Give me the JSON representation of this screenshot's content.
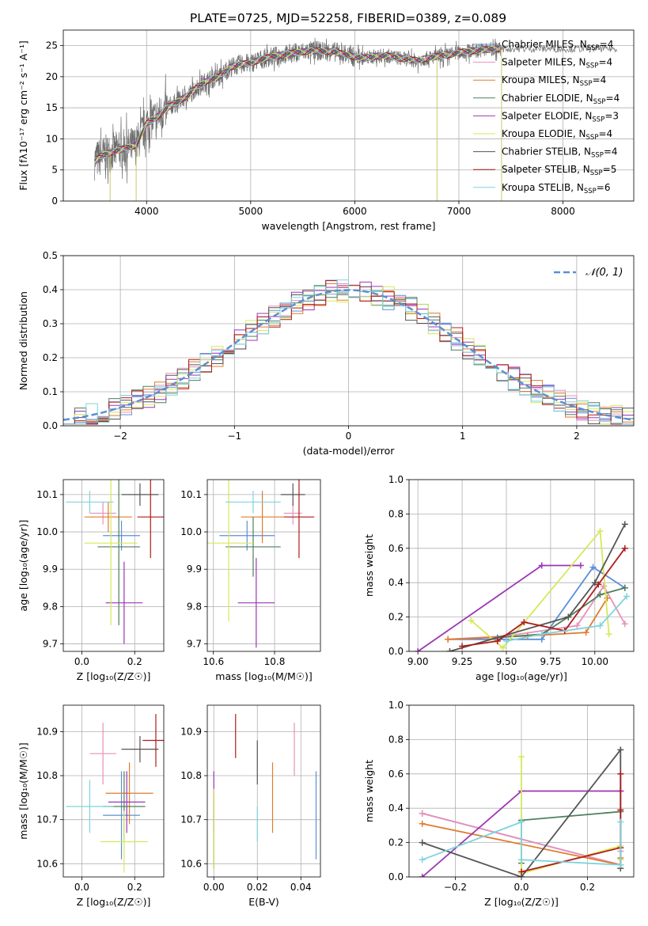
{
  "title": "PLATE=0725, MJD=52258, FIBERID=0389, z=0.089",
  "colors": {
    "Chabrier MILES": "#5b8fd6",
    "Salpeter MILES": "#e891b8",
    "Kroupa MILES": "#e07b2e",
    "Chabrier ELODIE": "#4e7f5c",
    "Salpeter ELODIE": "#9c36b5",
    "Kroupa ELODIE": "#d6e85a",
    "Chabrier STELIB": "#555555",
    "Salpeter STELIB": "#b01c1c",
    "Kroupa STELIB": "#7fd3dd"
  },
  "chart_data": [
    {
      "id": "spectrum",
      "type": "line",
      "xlabel": "wavelength [Angstrom, rest frame]",
      "ylabel": "Flux [fλ10⁻¹⁷ erg cm⁻² s⁻¹ A⁻¹]",
      "xlim": [
        3200,
        8680
      ],
      "ylim": [
        0,
        27.5
      ],
      "xticks": [
        4000,
        5000,
        6000,
        7000,
        8000
      ],
      "yticks": [
        0,
        5,
        10,
        15,
        20,
        25
      ],
      "legend_loc": "top-right",
      "legend": [
        {
          "name": "Chabrier MILES",
          "label": "Chabrier MILES, N",
          "sub": "SSP",
          "rest": "=4"
        },
        {
          "name": "Salpeter MILES",
          "label": "Salpeter MILES, N",
          "sub": "SSP",
          "rest": "=4"
        },
        {
          "name": "Kroupa MILES",
          "label": "Kroupa MILES, N",
          "sub": "SSP",
          "rest": "=4"
        },
        {
          "name": "Chabrier ELODIE",
          "label": "Chabrier ELODIE, N",
          "sub": "SSP",
          "rest": "=4"
        },
        {
          "name": "Salpeter ELODIE",
          "label": "Salpeter ELODIE, N",
          "sub": "SSP",
          "rest": "=3"
        },
        {
          "name": "Kroupa ELODIE",
          "label": "Kroupa ELODIE, N",
          "sub": "SSP",
          "rest": "=4"
        },
        {
          "name": "Chabrier STELIB",
          "label": "Chabrier STELIB, N",
          "sub": "SSP",
          "rest": "=4"
        },
        {
          "name": "Salpeter STELIB",
          "label": "Salpeter STELIB, N",
          "sub": "SSP",
          "rest": "=5"
        },
        {
          "name": "Kroupa STELIB",
          "label": "Kroupa STELIB, N",
          "sub": "SSP",
          "rest": "=6"
        }
      ],
      "continuum": [
        [
          3500,
          6.5
        ],
        [
          3600,
          7.5
        ],
        [
          3700,
          8.0
        ],
        [
          3800,
          8.5
        ],
        [
          3900,
          9.0
        ],
        [
          4000,
          12.5
        ],
        [
          4100,
          13.5
        ],
        [
          4200,
          15.0
        ],
        [
          4300,
          16.0
        ],
        [
          4400,
          17.0
        ],
        [
          4500,
          18.5
        ],
        [
          4600,
          19.5
        ],
        [
          4700,
          20.0
        ],
        [
          4800,
          21.5
        ],
        [
          4900,
          22.0
        ],
        [
          5000,
          22.2
        ],
        [
          5100,
          22.8
        ],
        [
          5200,
          23.2
        ],
        [
          5300,
          23.5
        ],
        [
          5400,
          23.8
        ],
        [
          5500,
          24.0
        ],
        [
          5600,
          24.2
        ],
        [
          5700,
          24.1
        ],
        [
          5800,
          24.0
        ],
        [
          5900,
          23.6
        ],
        [
          6000,
          23.2
        ],
        [
          6100,
          23.0
        ],
        [
          6200,
          23.3
        ],
        [
          6300,
          23.4
        ],
        [
          6400,
          23.1
        ],
        [
          6500,
          22.8
        ],
        [
          6600,
          22.6
        ],
        [
          6700,
          23.0
        ],
        [
          6800,
          23.3
        ],
        [
          6900,
          23.5
        ],
        [
          7000,
          23.9
        ],
        [
          7100,
          24.1
        ],
        [
          7200,
          24.3
        ],
        [
          7300,
          24.4
        ],
        [
          7400,
          24.5
        ]
      ],
      "dips": [
        [
          3650,
          0
        ],
        [
          3900,
          0
        ],
        [
          6790,
          0
        ],
        [
          7410,
          0
        ]
      ]
    },
    {
      "id": "residuals",
      "type": "histogram",
      "xlabel": "(data-model)/error",
      "ylabel": "Normed distribution",
      "xlim": [
        -2.5,
        2.5
      ],
      "ylim": [
        0,
        0.5
      ],
      "xticks": [
        -2,
        -1,
        0,
        1,
        2
      ],
      "yticks": [
        0.0,
        0.1,
        0.2,
        0.3,
        0.4,
        0.5
      ],
      "bin_width": 0.1,
      "legend_loc": "top-right",
      "legend_label": "𝒩(0, 1)",
      "gaussian": {
        "mean": 0,
        "sigma": 1
      }
    },
    {
      "id": "age-z",
      "type": "errorbar",
      "xlabel": "Z [log₁₀(Z/Z☉)]",
      "ylabel": "age  [log₁₀(age/yr)]",
      "xlim": [
        -0.07,
        0.31
      ],
      "ylim": [
        9.68,
        10.14
      ],
      "xticks": [
        0.0,
        0.2
      ],
      "yticks": [
        9.7,
        9.8,
        9.9,
        10.0,
        10.1
      ],
      "points": [
        {
          "s": "Chabrier MILES",
          "x": 0.15,
          "y": 9.99,
          "xe": 0.07,
          "ye": 0.04
        },
        {
          "s": "Salpeter MILES",
          "x": 0.08,
          "y": 10.05,
          "xe": 0.05,
          "ye": 0.03
        },
        {
          "s": "Kroupa MILES",
          "x": 0.1,
          "y": 10.04,
          "xe": 0.09,
          "ye": 0.04
        },
        {
          "s": "Chabrier ELODIE",
          "x": 0.14,
          "y": 9.96,
          "xe": 0.08,
          "ye": 0.21
        },
        {
          "s": "Salpeter ELODIE",
          "x": 0.16,
          "y": 9.81,
          "xe": 0.07,
          "ye": 0.11
        },
        {
          "s": "Kroupa ELODIE",
          "x": 0.11,
          "y": 9.97,
          "xe": 0.1,
          "ye": 0.22
        },
        {
          "s": "Chabrier STELIB",
          "x": 0.22,
          "y": 10.1,
          "xe": 0.07,
          "ye": 0.03
        },
        {
          "s": "Salpeter STELIB",
          "x": 0.26,
          "y": 10.04,
          "xe": 0.05,
          "ye": 0.11
        },
        {
          "s": "Kroupa STELIB",
          "x": 0.03,
          "y": 10.08,
          "xe": 0.09,
          "ye": 0.03
        }
      ]
    },
    {
      "id": "age-mass",
      "type": "errorbar",
      "xlabel": "mass [log₁₀(M/M☉)]",
      "ylabel": "",
      "xlim": [
        10.58,
        10.95
      ],
      "ylim": [
        9.68,
        10.14
      ],
      "xticks": [
        10.6,
        10.8
      ],
      "yticks": [
        9.7,
        9.8,
        9.9,
        10.0,
        10.1
      ],
      "points": [
        {
          "s": "Chabrier MILES",
          "x": 10.71,
          "y": 9.99,
          "xe": 0.09,
          "ye": 0.04
        },
        {
          "s": "Salpeter MILES",
          "x": 10.86,
          "y": 10.05,
          "xe": 0.03,
          "ye": 0.03
        },
        {
          "s": "Kroupa MILES",
          "x": 10.76,
          "y": 10.04,
          "xe": 0.07,
          "ye": 0.07
        },
        {
          "s": "Chabrier ELODIE",
          "x": 10.73,
          "y": 9.96,
          "xe": 0.09,
          "ye": 0.08
        },
        {
          "s": "Salpeter ELODIE",
          "x": 10.74,
          "y": 9.81,
          "xe": 0.06,
          "ye": 0.12
        },
        {
          "s": "Kroupa ELODIE",
          "x": 10.65,
          "y": 9.97,
          "xe": 0.08,
          "ye": 0.21
        },
        {
          "s": "Chabrier STELIB",
          "x": 10.86,
          "y": 10.1,
          "xe": 0.04,
          "ye": 0.03
        },
        {
          "s": "Salpeter STELIB",
          "x": 10.88,
          "y": 10.04,
          "xe": 0.05,
          "ye": 0.11
        },
        {
          "s": "Kroupa STELIB",
          "x": 10.73,
          "y": 10.08,
          "xe": 0.09,
          "ye": 0.03
        }
      ]
    },
    {
      "id": "mw-age",
      "type": "line",
      "xlabel": "age  [log₁₀(age/yr)]",
      "ylabel": "mass weight",
      "xlim": [
        8.95,
        10.22
      ],
      "ylim": [
        0,
        1
      ],
      "xticks": [
        9.0,
        9.25,
        9.5,
        9.75,
        10.0
      ],
      "xtick_labels": [
        "9.00",
        "9.25",
        "9.50",
        "9.75",
        "10.00"
      ],
      "yticks": [
        0.0,
        0.2,
        0.4,
        0.6,
        0.8,
        1.0
      ],
      "series": [
        {
          "s": "Chabrier MILES",
          "pts": [
            [
              9.17,
              0.07
            ],
            [
              9.7,
              0.07
            ],
            [
              9.99,
              0.49
            ],
            [
              10.17,
              0.37
            ]
          ]
        },
        {
          "s": "Salpeter MILES",
          "pts": [
            [
              9.17,
              0.07
            ],
            [
              9.5,
              0.09
            ],
            [
              9.9,
              0.15
            ],
            [
              10.05,
              0.38
            ],
            [
              10.17,
              0.16
            ]
          ]
        },
        {
          "s": "Kroupa MILES",
          "pts": [
            [
              9.17,
              0.07
            ],
            [
              9.62,
              0.09
            ],
            [
              9.95,
              0.11
            ],
            [
              10.07,
              0.31
            ]
          ]
        },
        {
          "s": "Chabrier ELODIE",
          "pts": [
            [
              9.45,
              0.08
            ],
            [
              9.7,
              0.1
            ],
            [
              9.85,
              0.2
            ],
            [
              10.03,
              0.33
            ],
            [
              10.17,
              0.37
            ]
          ]
        },
        {
          "s": "Salpeter ELODIE",
          "pts": [
            [
              9.0,
              0.0
            ],
            [
              9.7,
              0.5
            ],
            [
              9.92,
              0.5
            ]
          ]
        },
        {
          "s": "Kroupa ELODIE",
          "pts": [
            [
              9.3,
              0.18
            ],
            [
              9.48,
              0.02
            ],
            [
              10.03,
              0.7
            ],
            [
              10.08,
              0.1
            ]
          ]
        },
        {
          "s": "Chabrier STELIB",
          "pts": [
            [
              9.18,
              0.0
            ],
            [
              9.85,
              0.2
            ],
            [
              10.0,
              0.4
            ],
            [
              10.17,
              0.74
            ]
          ]
        },
        {
          "s": "Salpeter STELIB",
          "pts": [
            [
              9.25,
              0.03
            ],
            [
              9.45,
              0.06
            ],
            [
              9.6,
              0.17
            ],
            [
              9.83,
              0.12
            ],
            [
              10.02,
              0.39
            ],
            [
              10.17,
              0.6
            ]
          ]
        },
        {
          "s": "Kroupa STELIB",
          "pts": [
            [
              9.5,
              0.06
            ],
            [
              9.7,
              0.1
            ],
            [
              10.03,
              0.15
            ],
            [
              10.18,
              0.32
            ]
          ]
        }
      ]
    },
    {
      "id": "mass-z",
      "type": "errorbar",
      "xlabel": "Z [log₁₀(Z/Z☉)]",
      "ylabel": "mass [log₁₀(M/M☉)]",
      "xlim": [
        -0.07,
        0.31
      ],
      "ylim": [
        10.57,
        10.96
      ],
      "xticks": [
        0.0,
        0.2
      ],
      "yticks": [
        10.6,
        10.7,
        10.8,
        10.9
      ],
      "points": [
        {
          "s": "Chabrier MILES",
          "x": 0.15,
          "y": 10.71,
          "xe": 0.07,
          "ye": 0.1
        },
        {
          "s": "Salpeter MILES",
          "x": 0.08,
          "y": 10.85,
          "xe": 0.05,
          "ye": 0.07
        },
        {
          "s": "Kroupa MILES",
          "x": 0.18,
          "y": 10.76,
          "xe": 0.09,
          "ye": 0.07
        },
        {
          "s": "Chabrier ELODIE",
          "x": 0.16,
          "y": 10.73,
          "xe": 0.08,
          "ye": 0.08
        },
        {
          "s": "Salpeter ELODIE",
          "x": 0.17,
          "y": 10.74,
          "xe": 0.07,
          "ye": 0.07
        },
        {
          "s": "Kroupa ELODIE",
          "x": 0.16,
          "y": 10.65,
          "xe": 0.09,
          "ye": 0.07
        },
        {
          "s": "Chabrier STELIB",
          "x": 0.22,
          "y": 10.86,
          "xe": 0.07,
          "ye": 0.03
        },
        {
          "s": "Salpeter STELIB",
          "x": 0.28,
          "y": 10.88,
          "xe": 0.05,
          "ye": 0.06
        },
        {
          "s": "Kroupa STELIB",
          "x": 0.03,
          "y": 10.73,
          "xe": 0.09,
          "ye": 0.06
        }
      ]
    },
    {
      "id": "mass-ebv",
      "type": "errorbar",
      "xlabel": "E(B-V)",
      "ylabel": "",
      "xlim": [
        -0.003,
        0.049
      ],
      "ylim": [
        10.57,
        10.96
      ],
      "xticks": [
        0.0,
        0.02,
        0.04
      ],
      "xtick_labels": [
        "0.00",
        "0.02",
        "0.04"
      ],
      "yticks": [
        10.6,
        10.7,
        10.8,
        10.9
      ],
      "points": [
        {
          "s": "Chabrier MILES",
          "x": 0.047,
          "y": 10.71,
          "xe": 0,
          "ye": 0.1
        },
        {
          "s": "Salpeter MILES",
          "x": 0.037,
          "y": 10.86,
          "xe": 0,
          "ye": 0.06
        },
        {
          "s": "Kroupa MILES",
          "x": 0.027,
          "y": 10.75,
          "xe": 0,
          "ye": 0.08
        },
        {
          "s": "Chabrier ELODIE",
          "x": 0.0,
          "y": 10.67,
          "xe": 0,
          "ye": 0.08
        },
        {
          "s": "Salpeter ELODIE",
          "x": 0.0,
          "y": 10.74,
          "xe": 0,
          "ye": 0.07
        },
        {
          "s": "Kroupa ELODIE",
          "x": 0.0,
          "y": 10.68,
          "xe": 0,
          "ye": 0.09
        },
        {
          "s": "Chabrier STELIB",
          "x": 0.02,
          "y": 10.83,
          "xe": 0,
          "ye": 0.05
        },
        {
          "s": "Salpeter STELIB",
          "x": 0.01,
          "y": 10.89,
          "xe": 0,
          "ye": 0.05
        },
        {
          "s": "Kroupa STELIB",
          "x": 0.02,
          "y": 10.69,
          "xe": 0,
          "ye": 0.04
        }
      ]
    },
    {
      "id": "mw-z",
      "type": "line",
      "xlabel": "Z [log₁₀(Z/Z☉)]",
      "ylabel": "mass weight",
      "xlim": [
        -0.34,
        0.34
      ],
      "ylim": [
        0,
        1
      ],
      "xticks": [
        -0.2,
        0.0,
        0.2
      ],
      "yticks": [
        0.0,
        0.2,
        0.4,
        0.6,
        0.8,
        1.0
      ],
      "series": [
        {
          "s": "Chabrier MILES",
          "pts": [
            [
              -0.3,
              0.37
            ],
            [
              0.3,
              0.07
            ]
          ]
        },
        {
          "s": "Salpeter MILES",
          "pts": [
            [
              -0.3,
              0.37
            ],
            [
              0.3,
              0.07
            ],
            [
              0.3,
              0.15
            ]
          ]
        },
        {
          "s": "Kroupa MILES",
          "pts": [
            [
              -0.3,
              0.31
            ],
            [
              0.3,
              0.07
            ],
            [
              0.3,
              0.11
            ]
          ]
        },
        {
          "s": "Chabrier ELODIE",
          "pts": [
            [
              0.0,
              0.08
            ],
            [
              0.0,
              0.33
            ],
            [
              0.3,
              0.38
            ]
          ]
        },
        {
          "s": "Salpeter ELODIE",
          "pts": [
            [
              -0.3,
              0.0
            ],
            [
              0.0,
              0.5
            ],
            [
              0.3,
              0.5
            ],
            [
              0.3,
              0.5
            ]
          ]
        },
        {
          "s": "Kroupa ELODIE",
          "pts": [
            [
              0.0,
              0.7
            ],
            [
              0.0,
              0.02
            ],
            [
              0.3,
              0.18
            ],
            [
              0.3,
              0.1
            ]
          ]
        },
        {
          "s": "Chabrier STELIB",
          "pts": [
            [
              -0.3,
              0.2
            ],
            [
              0.0,
              0.0
            ],
            [
              0.3,
              0.74
            ],
            [
              0.3,
              0.05
            ]
          ]
        },
        {
          "s": "Salpeter STELIB",
          "pts": [
            [
              0.0,
              0.03
            ],
            [
              0.3,
              0.17
            ],
            [
              0.3,
              0.39
            ],
            [
              0.3,
              0.6
            ]
          ]
        },
        {
          "s": "Kroupa STELIB",
          "pts": [
            [
              -0.3,
              0.1
            ],
            [
              0.0,
              0.32
            ],
            [
              0.0,
              0.1
            ],
            [
              0.3,
              0.07
            ],
            [
              0.3,
              0.32
            ]
          ]
        }
      ]
    }
  ]
}
